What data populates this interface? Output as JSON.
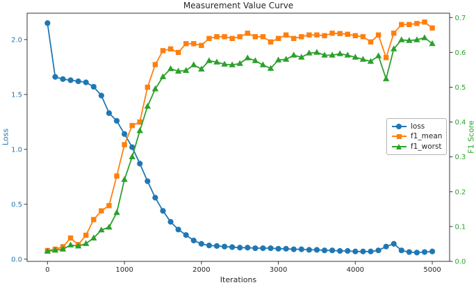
{
  "chart_data": {
    "type": "line",
    "title": "Measurement Value Curve",
    "xlabel": "Iterations",
    "ylabel_left": "Loss",
    "ylabel_right": "F1 Score",
    "legend_position": "center right",
    "grid": false,
    "xlim": [
      -265,
      5225
    ],
    "left_ylim": [
      -0.02,
      2.24
    ],
    "right_ylim": [
      0.0,
      0.7125
    ],
    "x_ticks": [
      0,
      1000,
      2000,
      3000,
      4000,
      5000
    ],
    "left_tick_labels": [
      "0.0",
      "0.5",
      "1.0",
      "1.5",
      "2.0"
    ],
    "right_tick_labels": [
      "0.0",
      "0.1",
      "0.2",
      "0.3",
      "0.4",
      "0.5",
      "0.6",
      "0.7"
    ],
    "colors": {
      "loss": "#1f77b4",
      "f1_mean": "#ff7f0e",
      "f1_worst": "#2ca02c",
      "text": "#262626",
      "spine": "#333333",
      "legend_border": "#b3b3b3"
    },
    "x": [
      0,
      100,
      200,
      300,
      400,
      500,
      600,
      700,
      800,
      900,
      1000,
      1100,
      1200,
      1300,
      1400,
      1500,
      1600,
      1700,
      1800,
      1900,
      2000,
      2100,
      2200,
      2300,
      2400,
      2500,
      2600,
      2700,
      2800,
      2900,
      3000,
      3100,
      3200,
      3300,
      3400,
      3500,
      3600,
      3700,
      3800,
      3900,
      4000,
      4100,
      4200,
      4300,
      4400,
      4500,
      4600,
      4700,
      4800,
      4900,
      5000
    ],
    "series": [
      {
        "name": "loss",
        "axis": "left",
        "color": "#1f77b4",
        "marker": "circle",
        "values": [
          2.15,
          1.66,
          1.64,
          1.63,
          1.62,
          1.61,
          1.57,
          1.49,
          1.33,
          1.26,
          1.14,
          1.02,
          0.87,
          0.71,
          0.56,
          0.44,
          0.34,
          0.27,
          0.22,
          0.17,
          0.14,
          0.125,
          0.12,
          0.115,
          0.11,
          0.105,
          0.105,
          0.1,
          0.1,
          0.1,
          0.095,
          0.095,
          0.09,
          0.09,
          0.085,
          0.085,
          0.08,
          0.08,
          0.075,
          0.075,
          0.07,
          0.07,
          0.07,
          0.08,
          0.115,
          0.14,
          0.08,
          0.065,
          0.06,
          0.065,
          0.07
        ]
      },
      {
        "name": "f1_mean",
        "axis": "right",
        "color": "#ff7f0e",
        "marker": "square",
        "values": [
          0.031,
          0.035,
          0.042,
          0.067,
          0.048,
          0.075,
          0.12,
          0.145,
          0.16,
          0.245,
          0.335,
          0.39,
          0.4,
          0.5,
          0.565,
          0.605,
          0.61,
          0.6,
          0.625,
          0.625,
          0.62,
          0.64,
          0.645,
          0.645,
          0.64,
          0.645,
          0.655,
          0.645,
          0.645,
          0.63,
          0.64,
          0.65,
          0.64,
          0.645,
          0.65,
          0.65,
          0.648,
          0.655,
          0.654,
          0.652,
          0.648,
          0.645,
          0.63,
          0.65,
          0.585,
          0.655,
          0.68,
          0.68,
          0.683,
          0.687,
          0.67
        ]
      },
      {
        "name": "f1_worst",
        "axis": "right",
        "color": "#2ca02c",
        "marker": "triangle",
        "values": [
          0.029,
          0.032,
          0.035,
          0.047,
          0.044,
          0.051,
          0.067,
          0.09,
          0.098,
          0.14,
          0.235,
          0.3,
          0.375,
          0.445,
          0.495,
          0.53,
          0.553,
          0.546,
          0.548,
          0.564,
          0.552,
          0.576,
          0.572,
          0.566,
          0.564,
          0.568,
          0.584,
          0.576,
          0.564,
          0.554,
          0.578,
          0.58,
          0.592,
          0.586,
          0.598,
          0.6,
          0.592,
          0.592,
          0.596,
          0.592,
          0.586,
          0.58,
          0.574,
          0.59,
          0.524,
          0.61,
          0.636,
          0.634,
          0.636,
          0.642,
          0.625
        ]
      }
    ]
  }
}
